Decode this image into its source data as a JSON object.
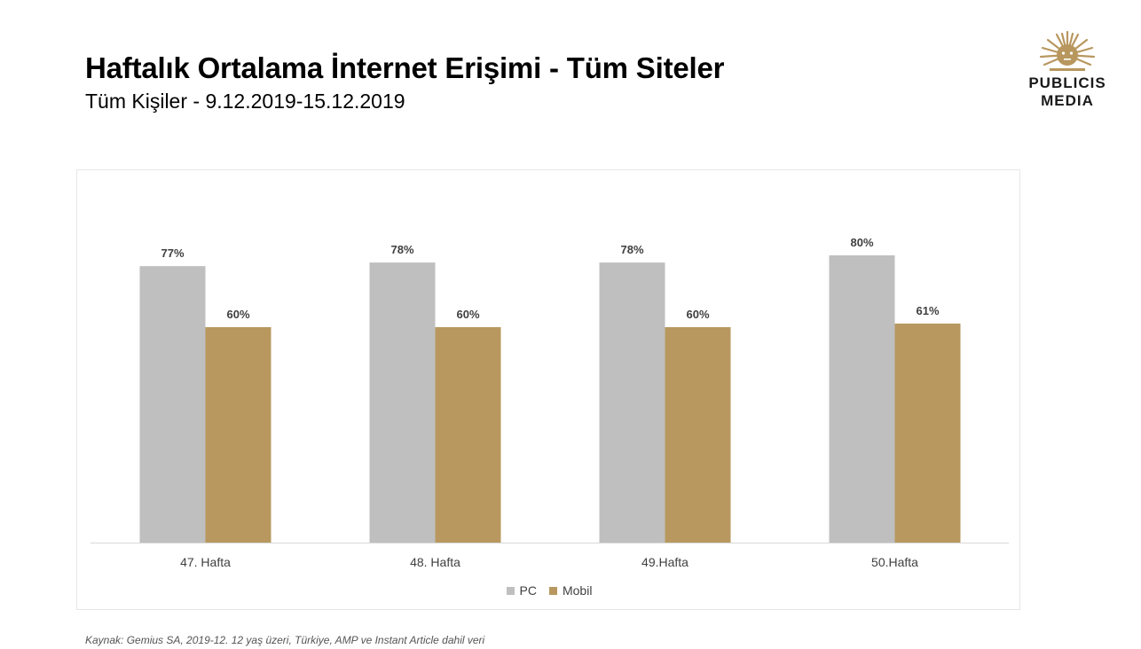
{
  "header": {
    "title": "Haftalık Ortalama İnternet Erişimi  - Tüm Siteler",
    "subtitle": "Tüm Kişiler  - 9.12.2019-15.12.2019"
  },
  "logo": {
    "line1": "PUBLICIS",
    "line2": "MEDIA",
    "icon": "publicis-lion-sun-icon",
    "color": "#B8975E"
  },
  "chart_data": {
    "type": "bar",
    "categories": [
      "47. Hafta",
      "48. Hafta",
      "49.Hafta",
      "50.Hafta"
    ],
    "series": [
      {
        "name": "PC",
        "values": [
          77,
          78,
          78,
          80
        ],
        "labels": [
          "77%",
          "78%",
          "78%",
          "80%"
        ],
        "color": "#BFBFBF"
      },
      {
        "name": "Mobil",
        "values": [
          60,
          60,
          60,
          61
        ],
        "labels": [
          "60%",
          "60%",
          "60%",
          "61%"
        ],
        "color": "#B8985F"
      }
    ],
    "ylim": [
      0,
      100
    ],
    "grid": false,
    "legend_position": "bottom"
  },
  "footer": {
    "source": "Kaynak: Gemius SA, 2019-12. 12 yaş üzeri, Türkiye, AMP ve Instant Article dahil veri"
  }
}
